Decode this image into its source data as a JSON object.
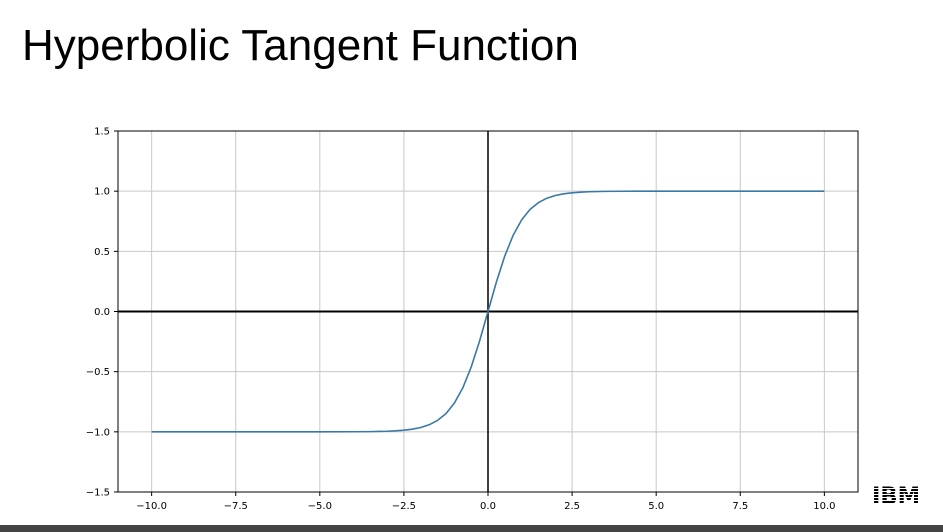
{
  "slide": {
    "title": "Hyperbolic Tangent Function"
  },
  "logo": {
    "text": "IBM"
  },
  "colors": {
    "line": "#3a78a6",
    "grid": "#c8c8c8",
    "axes": "#000000",
    "frame": "#000000"
  },
  "chart_data": {
    "type": "line",
    "title": "",
    "xlabel": "",
    "ylabel": "",
    "xlim": [
      -11,
      11
    ],
    "ylim": [
      -1.5,
      1.5
    ],
    "grid": true,
    "legend": "none",
    "function": "tanh",
    "x_ticks": [
      -10.0,
      -7.5,
      -5.0,
      -2.5,
      0.0,
      2.5,
      5.0,
      7.5,
      10.0
    ],
    "x_tick_labels": [
      "−10.0",
      "−7.5",
      "−5.0",
      "−2.5",
      "0.0",
      "2.5",
      "5.0",
      "7.5",
      "10.0"
    ],
    "y_ticks": [
      1.5,
      1.0,
      0.5,
      0.0,
      -0.5,
      -1.0,
      -1.5
    ],
    "y_tick_labels": [
      "1.5",
      "1.0",
      "0.5",
      "0.0",
      "−0.5",
      "−1.0",
      "−1.5"
    ],
    "series": [
      {
        "x": [
          -10,
          -9,
          -8,
          -7,
          -6,
          -5,
          -4,
          -3.5,
          -3,
          -2.75,
          -2.5,
          -2.25,
          -2,
          -1.75,
          -1.5,
          -1.25,
          -1,
          -0.75,
          -0.5,
          -0.25,
          0,
          0.25,
          0.5,
          0.75,
          1,
          1.25,
          1.5,
          1.75,
          2,
          2.25,
          2.5,
          2.75,
          3,
          3.5,
          4,
          5,
          6,
          7,
          8,
          9,
          10
        ],
        "y": [
          -1.0,
          -1.0,
          -1.0,
          -1.0,
          -1.0,
          -0.9999,
          -0.9993,
          -0.9982,
          -0.9951,
          -0.9918,
          -0.9866,
          -0.978,
          -0.964,
          -0.9414,
          -0.9051,
          -0.8483,
          -0.7616,
          -0.6351,
          -0.4621,
          -0.2449,
          0.0,
          0.2449,
          0.4621,
          0.6351,
          0.7616,
          0.8483,
          0.9051,
          0.9414,
          0.964,
          0.978,
          0.9866,
          0.9918,
          0.9951,
          0.9982,
          0.9993,
          0.9999,
          1.0,
          1.0,
          1.0,
          1.0,
          1.0
        ]
      }
    ]
  }
}
